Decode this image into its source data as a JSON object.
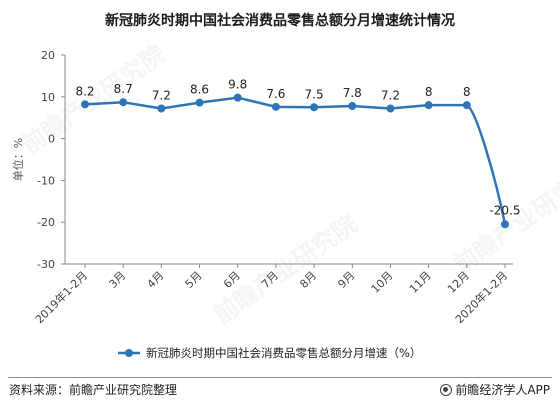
{
  "header": {
    "title": "新冠肺炎时期中国社会消费品零售总额分月增速统计情况"
  },
  "footer": {
    "source": "资料来源：前瞻产业研究院整理",
    "brand": "前瞻经济学人APP"
  },
  "watermark": {
    "text": "前瞻产业研究院"
  },
  "chart_data": {
    "type": "line",
    "title": "新冠肺炎时期中国社会消费品零售总额分月增速统计情况",
    "ylabel": "单位：%",
    "xlabel": "",
    "ylim": [
      -30,
      20
    ],
    "yticks": [
      20,
      10,
      0,
      -10,
      -20,
      -30
    ],
    "grid": false,
    "legend": "bottom",
    "categories": [
      "2019年1-2月",
      "3月",
      "4月",
      "5月",
      "6月",
      "7月",
      "8月",
      "9月",
      "10月",
      "11月",
      "12月",
      "2020年1-2月"
    ],
    "series": [
      {
        "name": "新冠肺炎时期中国社会消费品零售总额分月增速（%）",
        "color": "#2e75b6",
        "values": [
          8.2,
          8.7,
          7.2,
          8.6,
          9.8,
          7.6,
          7.5,
          7.8,
          7.2,
          8,
          8,
          -20.5
        ],
        "labels": [
          "8.2",
          "8.7",
          "7.2",
          "8.6",
          "9.8",
          "7.6",
          "7.5",
          "7.8",
          "7.2",
          "8",
          "8",
          "-20.5"
        ]
      }
    ]
  }
}
